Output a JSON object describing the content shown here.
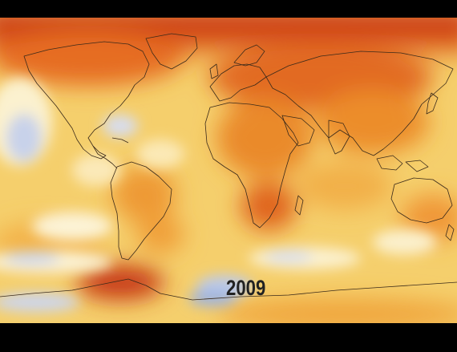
{
  "map": {
    "year": "2009",
    "colors": {
      "hot": "#b82a10",
      "warm": "#e0641e",
      "mild": "#f2a53a",
      "neutral": "#f7d67a",
      "pale": "#fbf0c8",
      "cool": "#c9d3ea",
      "cold": "#9fb1da",
      "coastline": "#3a2a1a"
    }
  }
}
